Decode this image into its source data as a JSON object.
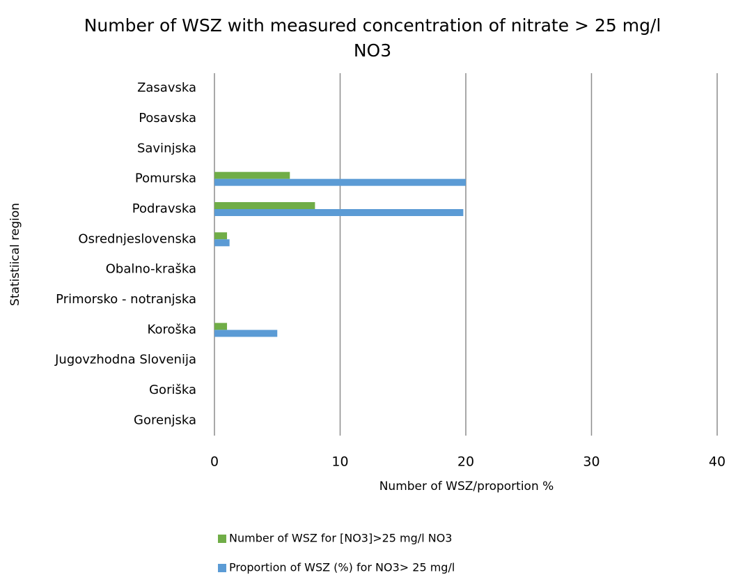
{
  "chart_data": {
    "type": "bar",
    "orientation": "horizontal",
    "title": [
      "Number of WSZ with measured concentration of nitrate > 25 mg/l",
      "NO3"
    ],
    "x_label": "Number of WSZ/proportion   %",
    "y_label": "Statistiical region",
    "categories": [
      "Zasavska",
      "Posavska",
      "Savinjska",
      "Pomurska",
      "Podravska",
      "Osrednjeslovenska",
      "Obalno-kraška",
      "Primorsko - notranjska",
      "Koroška",
      "Jugovzhodna Slovenija",
      "Goriška",
      "Gorenjska"
    ],
    "series": [
      {
        "name": "Number of WSZ  for [NO3]>25 mg/l NO3",
        "color": "#70ad47",
        "values": [
          0,
          0,
          0,
          6,
          8,
          1,
          0,
          0,
          1,
          0,
          0,
          0
        ]
      },
      {
        "name": "Proportion of WSZ (%) for NO3> 25 mg/l",
        "color": "#5b9bd5",
        "values": [
          0,
          0,
          0,
          20,
          19.8,
          1.2,
          0,
          0,
          5,
          0,
          0,
          0
        ]
      }
    ],
    "xlim": [
      0,
      40
    ],
    "xticks": [
      0,
      10,
      20,
      30,
      40
    ],
    "grid": true,
    "legend": "bottom"
  }
}
